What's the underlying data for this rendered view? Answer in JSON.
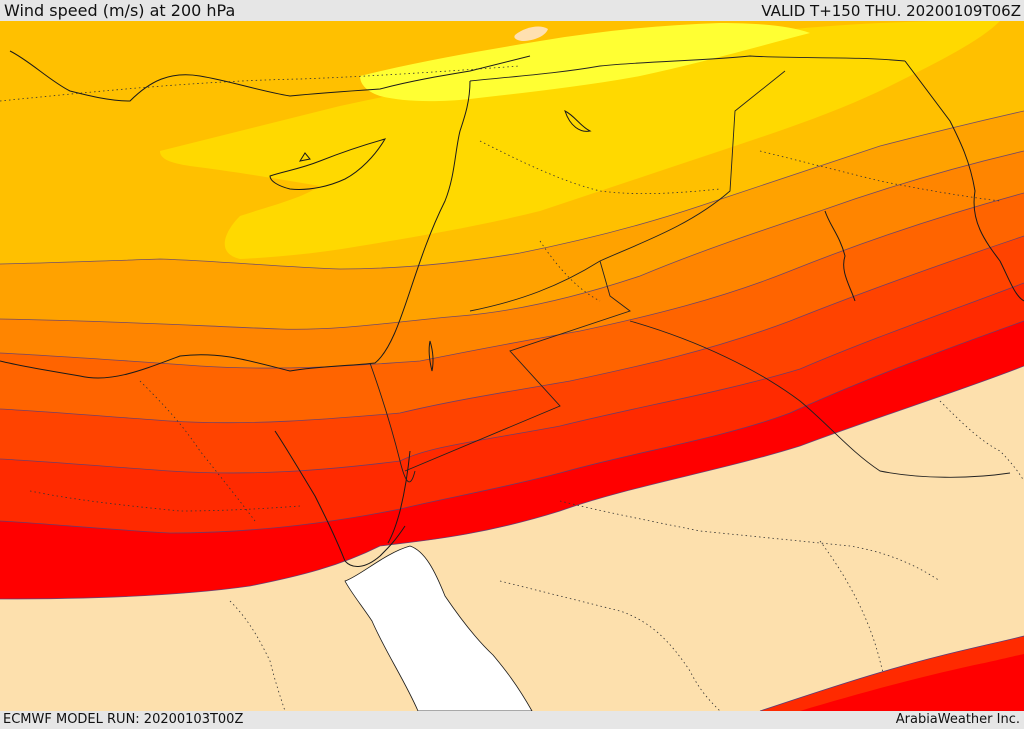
{
  "header": {
    "title": "Wind speed (m/s) at 200 hPa",
    "valid_time": "VALID T+150 THU. 20200109T06Z"
  },
  "footer": {
    "model_run": "ECMWF MODEL RUN: 20200103T00Z",
    "credit": "ArabiaWeather Inc."
  },
  "map": {
    "field": "wind speed",
    "level": "200 hPa",
    "units": "m/s",
    "colors": {
      "land_background": "#fde0ad",
      "sea_background": "#ffffff",
      "band_1": "#ffff33",
      "band_2": "#ffd900",
      "band_3": "#ffc000",
      "band_4": "#ffa200",
      "band_5": "#ff8500",
      "band_6": "#ff6400",
      "band_7": "#ff4300",
      "band_8": "#ff2a00",
      "band_9": "#ff0000",
      "coastline": "#1a1a1a",
      "borders": "#222222",
      "contours": "#5a3d7a"
    }
  }
}
